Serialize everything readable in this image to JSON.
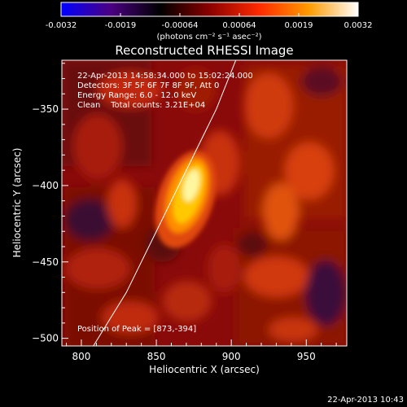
{
  "colorbar": {
    "colors": [
      "#0000ff",
      "#4b0082",
      "#000000",
      "#8b0000",
      "#ff2a00",
      "#ff9a00",
      "#ffffff"
    ],
    "ticks": [
      "-0.0032",
      "-0.0019",
      "-0.00064",
      "0.00064",
      "0.0019",
      "0.0032"
    ],
    "unit_label": "(photons cm⁻² s⁻¹ asec⁻²)"
  },
  "chart_data": {
    "type": "heatmap",
    "title": "Reconstructed RHESSI Image",
    "xlabel": "Heliocentric X (arcsec)",
    "ylabel": "Heliocentric Y (arcsec)",
    "xlim": [
      787,
      977
    ],
    "ylim": [
      -505,
      -318
    ],
    "xticks": [
      800,
      850,
      900,
      950
    ],
    "yticks": [
      -350,
      -400,
      -450,
      -500
    ],
    "annotations": [
      "22-Apr-2013 14:58:34.000 to 15:02:24.000",
      "Detectors: 3F 5F 6F 7F 8F 9F, Att 0",
      "Energy Range: 6.0 - 12.0 keV",
      "Clean    Total counts: 3.21E+04"
    ],
    "peak_label": "Position of Peak = [873,-394]",
    "peak": [
      873,
      -394
    ],
    "limb_curve": [
      [
        808,
        -505
      ],
      [
        830,
        -470
      ],
      [
        850,
        -430
      ],
      [
        870,
        -390
      ],
      [
        890,
        -350
      ],
      [
        903,
        -318
      ]
    ]
  },
  "footer_timestamp": "22-Apr-2013 10:43"
}
